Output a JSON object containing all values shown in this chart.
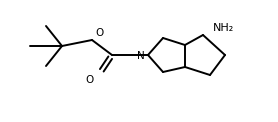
{
  "bg_color": "#ffffff",
  "line_color": "#000000",
  "line_width": 1.4,
  "font_size": 7.5,
  "atoms": {
    "NH2_label": "NH₂",
    "N_label": "N",
    "O1_label": "O",
    "O2_label": "O"
  },
  "figsize": [
    2.78,
    1.22
  ],
  "dpi": 100,
  "xlim": [
    0,
    278
  ],
  "ylim": [
    0,
    122
  ]
}
